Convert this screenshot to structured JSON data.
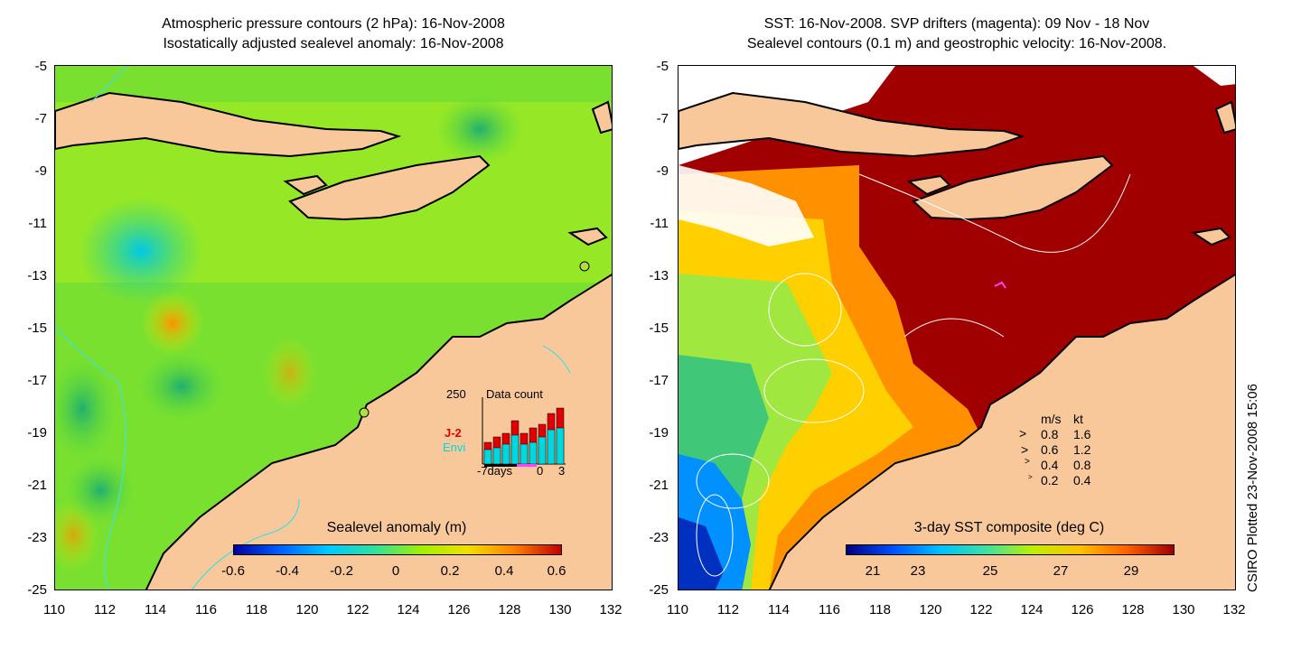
{
  "left_panel": {
    "title_line1": "Atmospheric pressure contours (2 hPa): 16-Nov-2008",
    "title_line2": "Isostatically adjusted sealevel anomaly: 16-Nov-2008",
    "colorbar_label": "Sealevel anomaly (m)",
    "colorbar_ticks": [
      "-0.6",
      "-0.4",
      "-0.2",
      "0",
      "0.2",
      "0.4",
      "0.6"
    ],
    "inset": {
      "count_label": "250",
      "title": "Data count",
      "series": [
        "J-2",
        "Envi"
      ],
      "xlabel_left": "-7days",
      "xlabel_mid": "0",
      "xlabel_right": "3",
      "colors": {
        "J-2": "#e00000",
        "Envi": "#00d8e0"
      }
    }
  },
  "right_panel": {
    "title_line1": "SST: 16-Nov-2008. SVP drifters (magenta): 09 Nov - 18 Nov",
    "title_line2": "Sealevel contours (0.1 m) and geostrophic velocity: 16-Nov-2008.",
    "colorbar_label": "3-day SST composite (deg C)",
    "colorbar_ticks": [
      "21",
      "23",
      "25",
      "27",
      "29"
    ],
    "velocity_legend": {
      "header_ms": "m/s",
      "header_kt": "kt",
      "rows": [
        {
          "ms": "0.8",
          "kt": "1.6"
        },
        {
          "ms": "0.6",
          "kt": "1.2"
        },
        {
          "ms": "0.4",
          "kt": "0.8"
        },
        {
          "ms": "0.2",
          "kt": "0.4"
        }
      ]
    }
  },
  "y_ticks": [
    "-5",
    "-7",
    "-9",
    "-11",
    "-13",
    "-15",
    "-17",
    "-19",
    "-21",
    "-23",
    "-25"
  ],
  "x_ticks": [
    "110",
    "112",
    "114",
    "116",
    "118",
    "120",
    "122",
    "124",
    "126",
    "128",
    "130",
    "132"
  ],
  "plotted_text": "CSIRO Plotted 23-Nov-2008 15:06",
  "colors": {
    "land": "#f8c89a",
    "sla_colormap": [
      "#0000a0",
      "#0060ff",
      "#00c8ff",
      "#30e0a0",
      "#a0f000",
      "#f0e000",
      "#ff8000",
      "#c00000"
    ],
    "sst_colormap": [
      "#00007f",
      "#0050ff",
      "#00c0ff",
      "#40e0a0",
      "#c0f000",
      "#ffc000",
      "#ff6000",
      "#a00000"
    ]
  }
}
